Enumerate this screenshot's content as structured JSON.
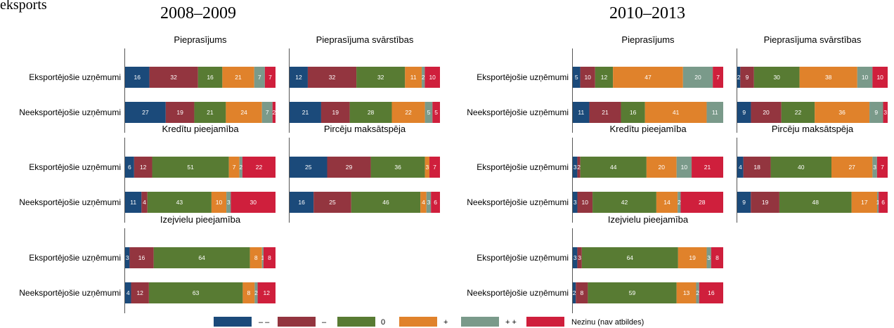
{
  "page": {
    "top_left_text": "eksports",
    "period_titles": [
      "2008–2009",
      "2010–2013"
    ]
  },
  "legend": [
    {
      "label": "– –",
      "color": "#1b4a7a"
    },
    {
      "label": "–",
      "color": "#93353f"
    },
    {
      "label": "0",
      "color": "#587b33"
    },
    {
      "label": "+",
      "color": "#e0822b"
    },
    {
      "label": "+ +",
      "color": "#7a9a8a"
    },
    {
      "label": "Nezinu (nav atbildes)",
      "color": "#cf1f3c"
    }
  ],
  "chart_data": {
    "type": "bar",
    "orientation": "horizontal",
    "stacked": true,
    "categories": [
      "Eksportējošie uzņēmumi",
      "Neeksportējošie uzņēmumi"
    ],
    "series_names": [
      "– –",
      "–",
      "0",
      "+",
      "+ +",
      "Nezinu (nav atbildes)"
    ],
    "periods": [
      {
        "title": "2008–2009",
        "panels": [
          {
            "title": "Pieprasījums",
            "values": [
              [
                16,
                32,
                16,
                21,
                7,
                7
              ],
              [
                27,
                19,
                21,
                24,
                7,
                2
              ]
            ]
          },
          {
            "title": "Pieprasījuma svārstības",
            "values": [
              [
                12,
                32,
                32,
                11,
                2,
                10
              ],
              [
                21,
                19,
                28,
                22,
                5,
                5
              ]
            ]
          },
          {
            "title": "Kredītu pieejamība",
            "values": [
              [
                6,
                12,
                51,
                7,
                2,
                22
              ],
              [
                11,
                4,
                43,
                10,
                3,
                30
              ]
            ]
          },
          {
            "title": "Pircēju maksātspēja",
            "values": [
              [
                25,
                29,
                36,
                3,
                0,
                7
              ],
              [
                16,
                25,
                46,
                4,
                3,
                6
              ]
            ]
          },
          {
            "title": "Izejvielu pieejamība",
            "values": [
              [
                3,
                16,
                64,
                8,
                1,
                8
              ],
              [
                4,
                12,
                63,
                8,
                2,
                12
              ]
            ]
          }
        ]
      },
      {
        "title": "2010–2013",
        "panels": [
          {
            "title": "Pieprasījums",
            "values": [
              [
                5,
                10,
                12,
                47,
                20,
                7
              ],
              [
                11,
                21,
                16,
                41,
                11,
                0
              ]
            ]
          },
          {
            "title": "Pieprasījuma svārstības",
            "values": [
              [
                2,
                9,
                30,
                38,
                10,
                10
              ],
              [
                9,
                20,
                22,
                36,
                9,
                3
              ]
            ]
          },
          {
            "title": "Kredītu pieejamība",
            "values": [
              [
                3,
                2,
                44,
                20,
                10,
                21
              ],
              [
                3,
                10,
                42,
                14,
                2,
                28
              ]
            ]
          },
          {
            "title": "Pircēju maksātspēja",
            "values": [
              [
                4,
                18,
                40,
                27,
                3,
                7
              ],
              [
                9,
                19,
                48,
                17,
                1,
                6
              ]
            ]
          },
          {
            "title": "Izejvielu pieejamība",
            "values": [
              [
                3,
                3,
                64,
                19,
                3,
                8
              ],
              [
                2,
                8,
                59,
                13,
                2,
                16
              ]
            ]
          }
        ]
      }
    ]
  }
}
